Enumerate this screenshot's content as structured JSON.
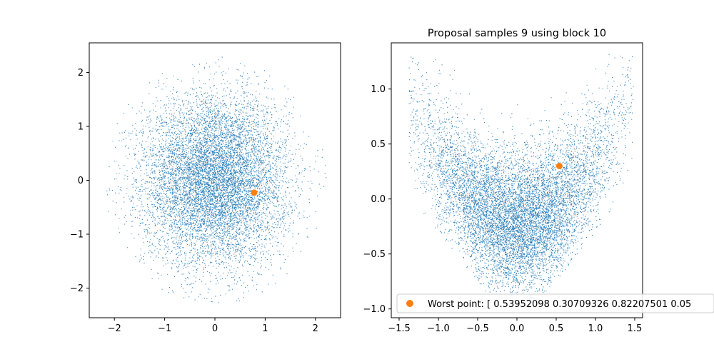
{
  "chart_data": [
    {
      "type": "scatter",
      "title": "",
      "xlabel": "",
      "ylabel": "",
      "xlim": [
        -2.5,
        2.5
      ],
      "ylim": [
        -2.55,
        2.55
      ],
      "xticks": [
        -2,
        -1,
        0,
        1,
        2
      ],
      "xtick_labels": [
        "−2",
        "−1",
        "0",
        "1",
        "2"
      ],
      "yticks": [
        -2,
        -1,
        0,
        1,
        2
      ],
      "ytick_labels": [
        "−2",
        "−1",
        "0",
        "1",
        "2"
      ],
      "grid": false,
      "series": [
        {
          "kind": "dense-samples",
          "distribution": "gaussian-disk",
          "radius": 2.3,
          "color": "#1f77b4"
        },
        {
          "kind": "highlight-point",
          "x": [
            0.78
          ],
          "y": [
            -0.23
          ],
          "color": "#ff7f0e"
        }
      ]
    },
    {
      "type": "scatter",
      "title": "Proposal samples 9 using block 10",
      "xlabel": "",
      "ylabel": "",
      "xlim": [
        -1.6,
        1.6
      ],
      "ylim": [
        -1.08,
        1.42
      ],
      "xticks": [
        -1.5,
        -1.0,
        -0.5,
        0.0,
        0.5,
        1.0,
        1.5
      ],
      "xtick_labels": [
        "−1.5",
        "−1.0",
        "−0.5",
        "0.0",
        "0.5",
        "1.0",
        "1.5"
      ],
      "yticks": [
        -1.0,
        -0.5,
        0.0,
        0.5,
        1.0
      ],
      "ytick_labels": [
        "−1.0",
        "−0.5",
        "0.0",
        "0.5",
        "1.0"
      ],
      "grid": false,
      "legend_position": "lower-right",
      "series": [
        {
          "kind": "dense-samples",
          "distribution": "banana",
          "color": "#1f77b4"
        },
        {
          "kind": "highlight-point",
          "name": "Worst point: [ 0.53952098  0.30709326  0.82207501  0.05",
          "x": [
            0.54
          ],
          "y": [
            0.3
          ],
          "color": "#ff7f0e"
        }
      ]
    }
  ]
}
